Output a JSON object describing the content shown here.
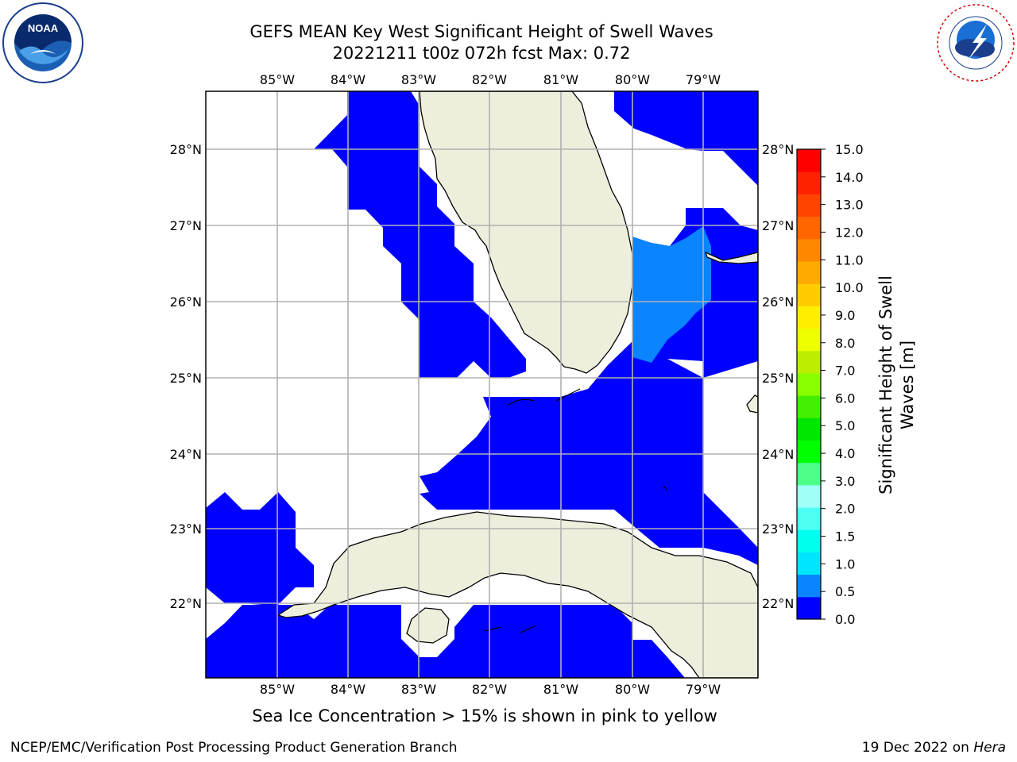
{
  "title": {
    "line1": "GEFS MEAN Key West Significant Height of Swell Waves",
    "line2": "20221211 t00z 072h fcst   Max: 0.72"
  },
  "logos": {
    "left": {
      "icon": "noaa-logo-icon",
      "text": "NOAA",
      "ring_text": "NATIONAL OCEANIC AND ATMOSPHERIC ADMINISTRATION · U.S. DEPARTMENT OF COMMERCE"
    },
    "right": {
      "icon": "nws-logo-icon",
      "ring_text": "NATIONAL WEATHER SERVICE"
    }
  },
  "map": {
    "lon_ticks": [
      "85°W",
      "84°W",
      "83°W",
      "82°W",
      "81°W",
      "80°W",
      "79°W"
    ],
    "lat_ticks": [
      "28°N",
      "27°N",
      "26°N",
      "25°N",
      "24°N",
      "23°N",
      "22°N"
    ],
    "colors": {
      "land": "#eeeedd",
      "coast": "#000000",
      "grid": "#b0b0b0",
      "swell_0_0_5": "#0000ff",
      "swell_0_5_1_0": "#0a84ff"
    }
  },
  "colorbar": {
    "label": "Significant Height of Swell Waves [m]",
    "label_line1": "Significant Height of Swell",
    "label_line2": "Waves [m]",
    "ticks": [
      "15.0",
      "14.0",
      "13.0",
      "12.0",
      "11.0",
      "10.0",
      "9.0",
      "8.0",
      "7.0",
      "6.0",
      "5.0",
      "4.0",
      "3.0",
      "2.0",
      "1.5",
      "1.0",
      "0.5",
      "0.0"
    ],
    "colors": [
      "#0000ff",
      "#0a84ff",
      "#00e5ff",
      "#00ffef",
      "#4dfff3",
      "#a0fff7",
      "#4dff88",
      "#00ff00",
      "#00e600",
      "#44ee00",
      "#88ff00",
      "#bbee00",
      "#eeff00",
      "#ffee00",
      "#ffcc00",
      "#ffaa00",
      "#ff8800",
      "#ff6600",
      "#ff4400",
      "#ff2200",
      "#ff0000"
    ]
  },
  "ice_note": "Sea Ice Concentration > 15% is shown in pink to yellow",
  "footer": {
    "left": "NCEP/EMC/Verification Post Processing Product Generation Branch",
    "date": "19 Dec 2022 on ",
    "machine": "Hera"
  }
}
